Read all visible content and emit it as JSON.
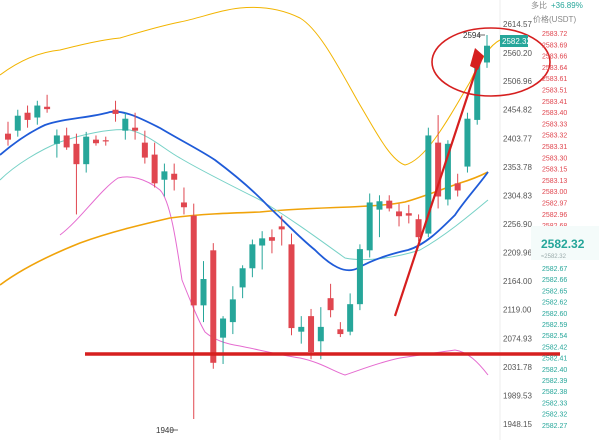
{
  "header": {
    "ratio_label": "多比",
    "ratio_value": "+36.89%",
    "pair_label": "价格(USDT)"
  },
  "price_axis": {
    "ticks": [
      "2614.57",
      "2560.20",
      "2506.96",
      "2454.82",
      "2403.77",
      "2353.78",
      "2304.83",
      "2256.90",
      "2209.96",
      "2164.00",
      "2119.00",
      "2074.93",
      "2031.78",
      "1989.53",
      "1948.15"
    ]
  },
  "current_price": {
    "chart_tag": "2582.32",
    "big_label": "2582.32",
    "big_sub": "≈2582.32",
    "color": "#26a69a"
  },
  "annotations": {
    "high": "2594",
    "low": "1940"
  },
  "order_book": {
    "asks": [
      "2583.72",
      "2583.69",
      "2583.66",
      "2583.64",
      "2583.61",
      "2583.51",
      "2583.41",
      "2583.40",
      "2583.33",
      "2583.32",
      "2583.31",
      "2583.30",
      "2583.15",
      "2583.13",
      "2583.00",
      "2582.97",
      "2582.96",
      "2582.68"
    ],
    "bids": [
      "2582.67",
      "2582.66",
      "2582.65",
      "2582.62",
      "2582.60",
      "2582.59",
      "2582.54",
      "2582.42",
      "2582.41",
      "2582.40",
      "2582.39",
      "2582.38",
      "2582.33",
      "2582.32",
      "2582.27"
    ],
    "ask_color": "#e0464f",
    "bid_color": "#26a69a"
  },
  "colors": {
    "up": "#26a69a",
    "down": "#e0464f",
    "ma_blue": "#1f5bd8",
    "ma_orange": "#f0a30a",
    "ma_teal": "#76d1c6",
    "band_yellow": "#f2b400",
    "band_pink": "#e56bd0",
    "annotation_red": "#d61f1f"
  },
  "chart_data": {
    "type": "candlestick",
    "ylim": [
      1948,
      2625
    ],
    "candles": [
      {
        "o": 2435,
        "h": 2455,
        "l": 2415,
        "c": 2425
      },
      {
        "o": 2440,
        "h": 2475,
        "l": 2430,
        "c": 2465
      },
      {
        "o": 2470,
        "h": 2482,
        "l": 2445,
        "c": 2458
      },
      {
        "o": 2462,
        "h": 2490,
        "l": 2450,
        "c": 2482
      },
      {
        "o": 2480,
        "h": 2500,
        "l": 2470,
        "c": 2476
      },
      {
        "o": 2418,
        "h": 2442,
        "l": 2395,
        "c": 2432
      },
      {
        "o": 2432,
        "h": 2445,
        "l": 2408,
        "c": 2412
      },
      {
        "o": 2418,
        "h": 2435,
        "l": 2300,
        "c": 2384
      },
      {
        "o": 2384,
        "h": 2438,
        "l": 2370,
        "c": 2430
      },
      {
        "o": 2425,
        "h": 2432,
        "l": 2415,
        "c": 2419
      },
      {
        "o": 2424,
        "h": 2430,
        "l": 2415,
        "c": 2422
      },
      {
        "o": 2475,
        "h": 2490,
        "l": 2455,
        "c": 2468
      },
      {
        "o": 2440,
        "h": 2470,
        "l": 2425,
        "c": 2460
      },
      {
        "o": 2445,
        "h": 2470,
        "l": 2425,
        "c": 2440
      },
      {
        "o": 2420,
        "h": 2440,
        "l": 2385,
        "c": 2395
      },
      {
        "o": 2400,
        "h": 2420,
        "l": 2345,
        "c": 2352
      },
      {
        "o": 2358,
        "h": 2385,
        "l": 2330,
        "c": 2372
      },
      {
        "o": 2368,
        "h": 2385,
        "l": 2340,
        "c": 2358
      },
      {
        "o": 2320,
        "h": 2345,
        "l": 2300,
        "c": 2312
      },
      {
        "o": 2298,
        "h": 2318,
        "l": 1958,
        "c": 2148
      },
      {
        "o": 2148,
        "h": 2222,
        "l": 2120,
        "c": 2192
      },
      {
        "o": 2240,
        "h": 2252,
        "l": 2042,
        "c": 2052
      },
      {
        "o": 2094,
        "h": 2130,
        "l": 2050,
        "c": 2126
      },
      {
        "o": 2120,
        "h": 2180,
        "l": 2100,
        "c": 2158
      },
      {
        "o": 2178,
        "h": 2215,
        "l": 2160,
        "c": 2210
      },
      {
        "o": 2210,
        "h": 2258,
        "l": 2195,
        "c": 2250
      },
      {
        "o": 2248,
        "h": 2272,
        "l": 2208,
        "c": 2260
      },
      {
        "o": 2262,
        "h": 2275,
        "l": 2235,
        "c": 2256
      },
      {
        "o": 2280,
        "h": 2298,
        "l": 2248,
        "c": 2275
      },
      {
        "o": 2250,
        "h": 2268,
        "l": 2098,
        "c": 2110
      },
      {
        "o": 2104,
        "h": 2130,
        "l": 2084,
        "c": 2112
      },
      {
        "o": 2130,
        "h": 2142,
        "l": 2058,
        "c": 2070
      },
      {
        "o": 2088,
        "h": 2145,
        "l": 2058,
        "c": 2112
      },
      {
        "o": 2160,
        "h": 2184,
        "l": 2128,
        "c": 2140
      },
      {
        "o": 2108,
        "h": 2120,
        "l": 2095,
        "c": 2100
      },
      {
        "o": 2104,
        "h": 2168,
        "l": 2098,
        "c": 2150
      },
      {
        "o": 2150,
        "h": 2250,
        "l": 2140,
        "c": 2242
      },
      {
        "o": 2240,
        "h": 2335,
        "l": 2228,
        "c": 2320
      },
      {
        "o": 2308,
        "h": 2332,
        "l": 2262,
        "c": 2322
      },
      {
        "o": 2323,
        "h": 2332,
        "l": 2305,
        "c": 2310
      },
      {
        "o": 2305,
        "h": 2318,
        "l": 2280,
        "c": 2297
      },
      {
        "o": 2302,
        "h": 2316,
        "l": 2285,
        "c": 2298
      },
      {
        "o": 2292,
        "h": 2300,
        "l": 2255,
        "c": 2262
      },
      {
        "o": 2268,
        "h": 2445,
        "l": 2262,
        "c": 2432
      },
      {
        "o": 2420,
        "h": 2466,
        "l": 2310,
        "c": 2330
      },
      {
        "o": 2325,
        "h": 2424,
        "l": 2315,
        "c": 2418
      },
      {
        "o": 2352,
        "h": 2368,
        "l": 2330,
        "c": 2340
      },
      {
        "o": 2380,
        "h": 2470,
        "l": 2370,
        "c": 2460
      },
      {
        "o": 2458,
        "h": 2572,
        "l": 2450,
        "c": 2554
      },
      {
        "o": 2554,
        "h": 2600,
        "l": 2545,
        "c": 2582
      }
    ]
  }
}
